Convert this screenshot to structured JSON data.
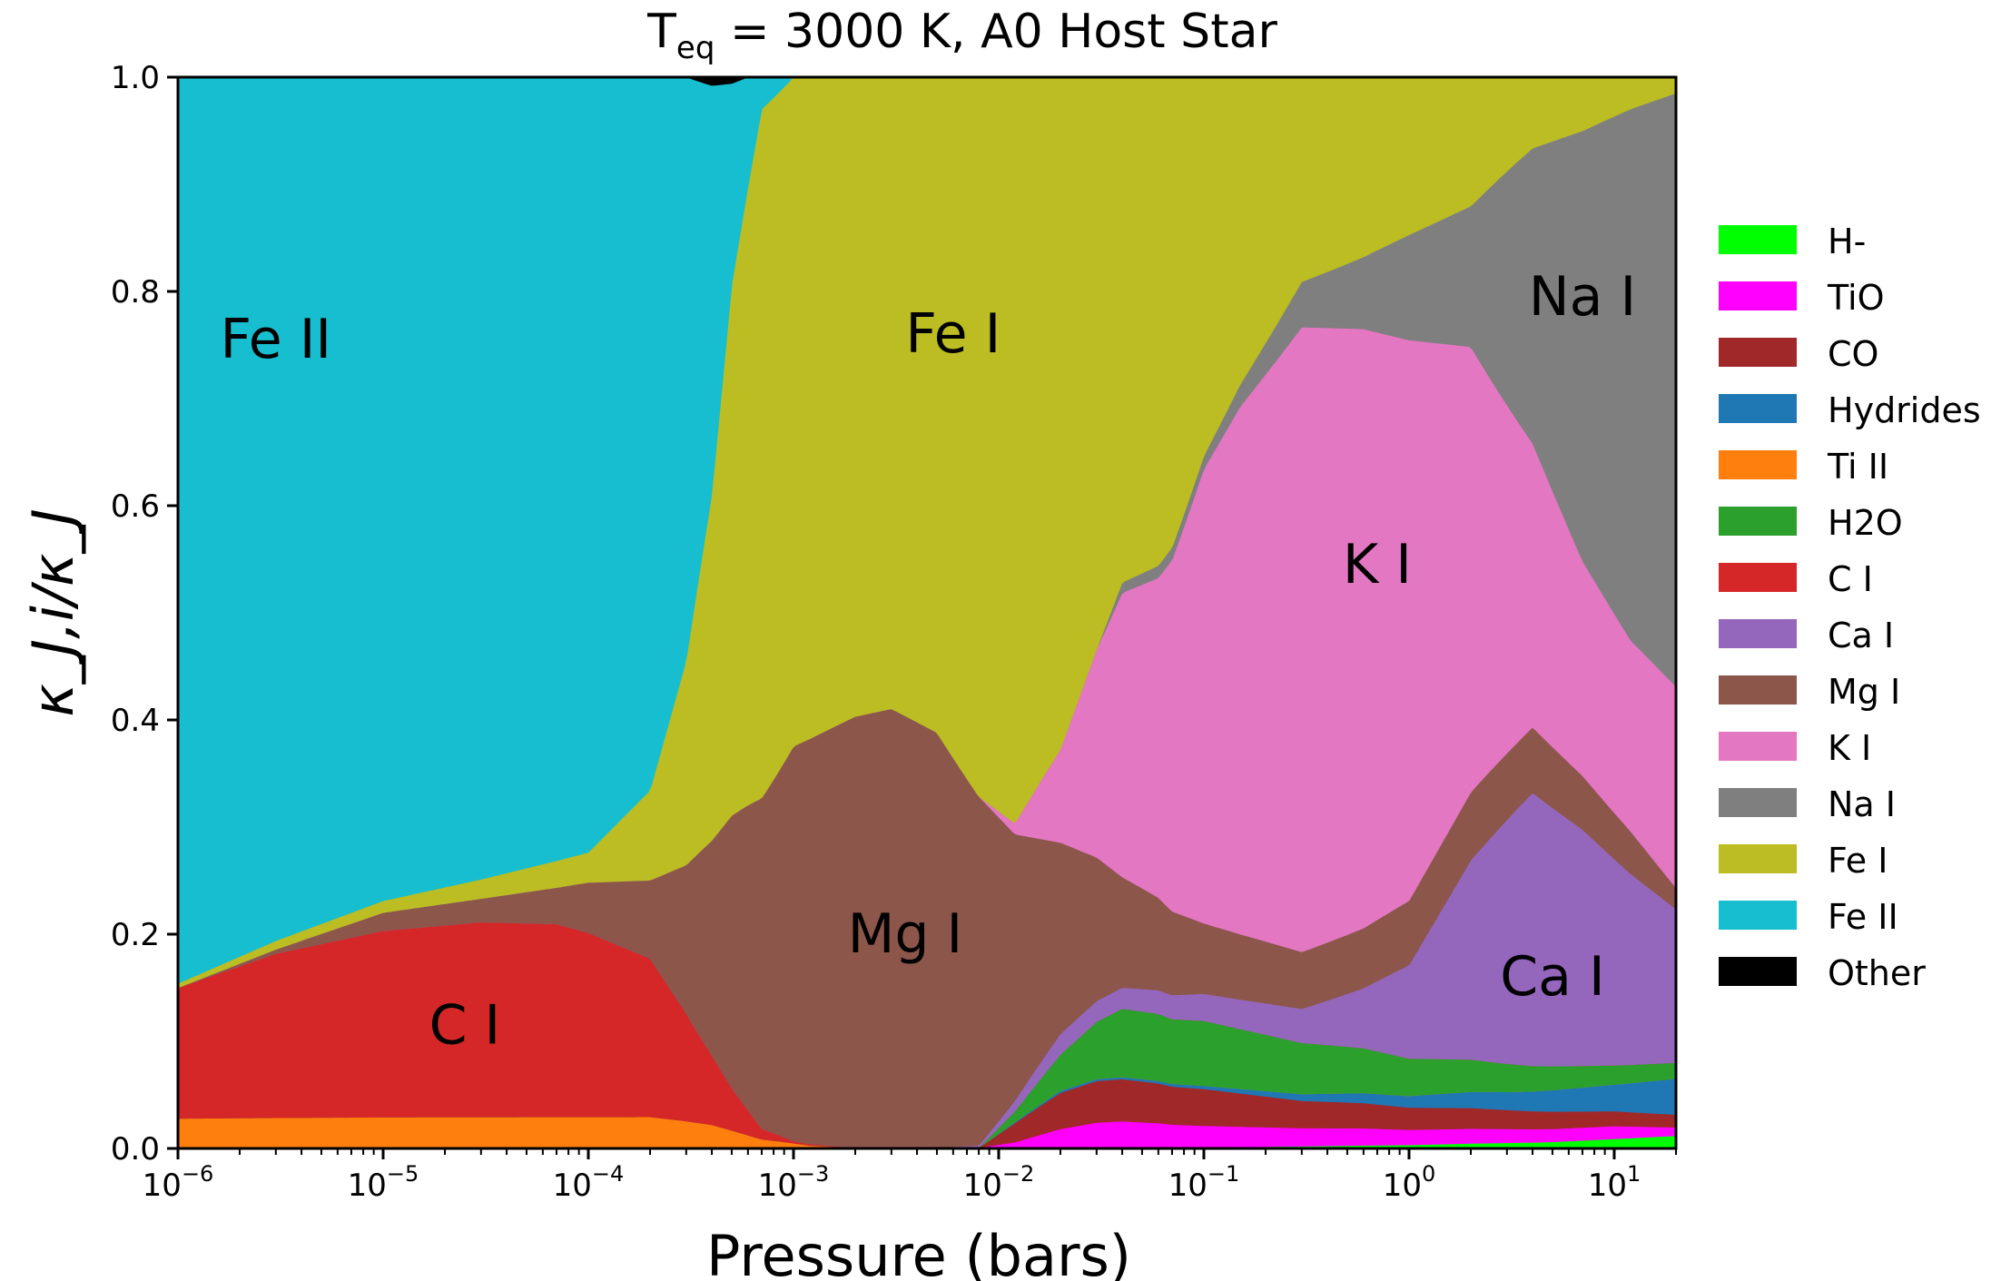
{
  "chart_data": {
    "type": "area",
    "stacked": true,
    "normalized": true,
    "title": "T_eq = 3000 K, A0 Host Star",
    "title_parts": {
      "main": "T",
      "sub": "eq",
      "rest": " = 3000 K, A0 Host Star"
    },
    "xlabel": "Pressure (bars)",
    "ylabel": "κ_J,i/κ_J",
    "x_scale": "log",
    "xlim": [
      1e-06,
      20
    ],
    "ylim": [
      0.0,
      1.0
    ],
    "y_ticks": [
      "0.0",
      "0.2",
      "0.4",
      "0.6",
      "0.8",
      "1.0"
    ],
    "x_ticks": [
      {
        "value": 1e-06,
        "base": "10",
        "exp": "−6"
      },
      {
        "value": 1e-05,
        "base": "10",
        "exp": "−5"
      },
      {
        "value": 0.0001,
        "base": "10",
        "exp": "−4"
      },
      {
        "value": 0.001,
        "base": "10",
        "exp": "−3"
      },
      {
        "value": 0.01,
        "base": "10",
        "exp": "−2"
      },
      {
        "value": 0.1,
        "base": "10",
        "exp": "−1"
      },
      {
        "value": 1,
        "base": "10",
        "exp": "0"
      },
      {
        "value": 10,
        "base": "10",
        "exp": "1"
      }
    ],
    "legend_position": "right",
    "series_order_bottom_to_top": [
      "H-",
      "TiO",
      "CO",
      "Hydrides",
      "Ti II",
      "H2O",
      "C I",
      "Ca I",
      "Mg I",
      "K I",
      "Na I",
      "Fe I",
      "Fe II",
      "Other"
    ],
    "series": [
      {
        "name": "H-",
        "color": "#00ff00",
        "points": [
          [
            1e-06,
            0
          ],
          [
            0.1,
            0.001
          ],
          [
            1,
            0.003
          ],
          [
            5,
            0.006
          ],
          [
            20,
            0.012
          ]
        ]
      },
      {
        "name": "TiO",
        "color": "#ff00ff",
        "points": [
          [
            1e-06,
            0
          ],
          [
            0.008,
            0
          ],
          [
            0.012,
            0.005
          ],
          [
            0.02,
            0.018
          ],
          [
            0.03,
            0.024
          ],
          [
            0.04,
            0.025
          ],
          [
            0.1,
            0.02
          ],
          [
            0.3,
            0.016
          ],
          [
            1,
            0.013
          ],
          [
            5,
            0.012
          ],
          [
            10,
            0.012
          ],
          [
            20,
            0.008
          ]
        ]
      },
      {
        "name": "CO",
        "color": "#a12828",
        "points": [
          [
            1e-06,
            0
          ],
          [
            0.008,
            0
          ],
          [
            0.012,
            0.018
          ],
          [
            0.02,
            0.035
          ],
          [
            0.03,
            0.04
          ],
          [
            0.04,
            0.04
          ],
          [
            0.1,
            0.034
          ],
          [
            0.3,
            0.024
          ],
          [
            1,
            0.019
          ],
          [
            5,
            0.016
          ],
          [
            10,
            0.014
          ],
          [
            20,
            0.012
          ]
        ]
      },
      {
        "name": "Hydrides",
        "color": "#1f77b4",
        "points": [
          [
            1e-06,
            0
          ],
          [
            0.008,
            0
          ],
          [
            0.012,
            0.001
          ],
          [
            0.02,
            0.002
          ],
          [
            0.04,
            0.002
          ],
          [
            0.1,
            0.003
          ],
          [
            0.3,
            0.006
          ],
          [
            1,
            0.01
          ],
          [
            3,
            0.016
          ],
          [
            10,
            0.025
          ],
          [
            20,
            0.034
          ]
        ]
      },
      {
        "name": "Ti II",
        "color": "#ff7f0e",
        "points": [
          [
            1e-06,
            0.028
          ],
          [
            1e-05,
            0.029
          ],
          [
            0.0001,
            0.029
          ],
          [
            0.0002,
            0.029
          ],
          [
            0.0004,
            0.022
          ],
          [
            0.0007,
            0.008
          ],
          [
            0.0012,
            0.002
          ],
          [
            0.002,
            0
          ],
          [
            20,
            0
          ]
        ]
      },
      {
        "name": "H2O",
        "color": "#2ca02c",
        "points": [
          [
            1e-06,
            0
          ],
          [
            0.008,
            0
          ],
          [
            0.012,
            0.01
          ],
          [
            0.02,
            0.035
          ],
          [
            0.03,
            0.055
          ],
          [
            0.04,
            0.065
          ],
          [
            0.1,
            0.06
          ],
          [
            0.3,
            0.045
          ],
          [
            1,
            0.032
          ],
          [
            3,
            0.025
          ],
          [
            10,
            0.018
          ],
          [
            20,
            0.015
          ]
        ]
      },
      {
        "name": "C I",
        "color": "#d62728",
        "points": [
          [
            1e-06,
            0.122
          ],
          [
            3e-06,
            0.153
          ],
          [
            1e-05,
            0.174
          ],
          [
            3e-05,
            0.182
          ],
          [
            7e-05,
            0.18
          ],
          [
            0.0001,
            0.172
          ],
          [
            0.0002,
            0.148
          ],
          [
            0.0003,
            0.1
          ],
          [
            0.0005,
            0.04
          ],
          [
            0.0007,
            0.01
          ],
          [
            0.001,
            0.002
          ],
          [
            0.002,
            0
          ],
          [
            20,
            0
          ]
        ]
      },
      {
        "name": "Ca I",
        "color": "#9467bd",
        "points": [
          [
            1e-06,
            0
          ],
          [
            0.005,
            0
          ],
          [
            0.008,
            0.002
          ],
          [
            0.012,
            0.01
          ],
          [
            0.02,
            0.02
          ],
          [
            0.03,
            0.02
          ],
          [
            0.04,
            0.02
          ],
          [
            0.07,
            0.023
          ],
          [
            0.1,
            0.025
          ],
          [
            0.3,
            0.03
          ],
          [
            0.6,
            0.05
          ],
          [
            1,
            0.08
          ],
          [
            2,
            0.17
          ],
          [
            4,
            0.25
          ],
          [
            7,
            0.22
          ],
          [
            12,
            0.18
          ],
          [
            20,
            0.145
          ]
        ]
      },
      {
        "name": "Mg I",
        "color": "#8c564b",
        "points": [
          [
            1e-06,
            0.0
          ],
          [
            3e-06,
            0.004
          ],
          [
            1e-05,
            0.017
          ],
          [
            3e-05,
            0.022
          ],
          [
            7e-05,
            0.034
          ],
          [
            0.0001,
            0.047
          ],
          [
            0.0002,
            0.073
          ],
          [
            0.0003,
            0.138
          ],
          [
            0.0005,
            0.257
          ],
          [
            0.0007,
            0.312
          ],
          [
            0.001,
            0.348
          ],
          [
            0.002,
            0.398
          ],
          [
            0.003,
            0.41
          ],
          [
            0.005,
            0.38
          ],
          [
            0.008,
            0.33
          ],
          [
            0.012,
            0.25
          ],
          [
            0.02,
            0.185
          ],
          [
            0.04,
            0.105
          ],
          [
            0.07,
            0.08
          ],
          [
            0.1,
            0.065
          ],
          [
            0.3,
            0.05
          ],
          [
            0.6,
            0.05
          ],
          [
            1,
            0.055
          ],
          [
            2,
            0.058
          ],
          [
            4,
            0.06
          ],
          [
            7,
            0.05
          ],
          [
            12,
            0.04
          ],
          [
            20,
            0.02
          ]
        ]
      },
      {
        "name": "K I",
        "color": "#e377c2",
        "points": [
          [
            1e-06,
            0
          ],
          [
            0.008,
            0
          ],
          [
            0.012,
            0.01
          ],
          [
            0.02,
            0.09
          ],
          [
            0.03,
            0.2
          ],
          [
            0.04,
            0.27
          ],
          [
            0.06,
            0.3
          ],
          [
            0.1,
            0.42
          ],
          [
            0.15,
            0.48
          ],
          [
            0.3,
            0.55
          ],
          [
            0.6,
            0.5
          ],
          [
            1,
            0.48
          ],
          [
            2,
            0.38
          ],
          [
            4,
            0.26
          ],
          [
            7,
            0.2
          ],
          [
            12,
            0.18
          ],
          [
            20,
            0.19
          ]
        ]
      },
      {
        "name": "Na I",
        "color": "#7f7f7f",
        "points": [
          [
            1e-06,
            0
          ],
          [
            0.03,
            0
          ],
          [
            0.04,
            0.01
          ],
          [
            0.07,
            0.012
          ],
          [
            0.1,
            0.012
          ],
          [
            0.15,
            0.02
          ],
          [
            0.3,
            0.04
          ],
          [
            0.6,
            0.06
          ],
          [
            1,
            0.09
          ],
          [
            2,
            0.12
          ],
          [
            4,
            0.27
          ],
          [
            7,
            0.4
          ],
          [
            12,
            0.5
          ],
          [
            20,
            0.56
          ]
        ]
      },
      {
        "name": "Fe I",
        "color": "#bcbd22",
        "points": [
          [
            1e-06,
            0.004
          ],
          [
            3e-06,
            0.008
          ],
          [
            1e-05,
            0.011
          ],
          [
            3e-05,
            0.018
          ],
          [
            7e-05,
            0.025
          ],
          [
            0.0001,
            0.028
          ],
          [
            0.0002,
            0.084
          ],
          [
            0.0003,
            0.19
          ],
          [
            0.0004,
            0.33
          ],
          [
            0.0005,
            0.5
          ],
          [
            0.0007,
            0.65
          ],
          [
            0.001,
            0.59
          ],
          [
            0.002,
            0.59
          ],
          [
            0.003,
            0.59
          ],
          [
            0.005,
            0.6
          ],
          [
            0.008,
            0.68
          ],
          [
            0.012,
            0.7
          ],
          [
            0.02,
            0.65
          ],
          [
            0.04,
            0.48
          ],
          [
            0.07,
            0.45
          ],
          [
            0.1,
            0.35
          ],
          [
            0.15,
            0.28
          ],
          [
            0.3,
            0.18
          ],
          [
            0.6,
            0.15
          ],
          [
            1,
            0.135
          ],
          [
            2,
            0.11
          ],
          [
            4,
            0.065
          ],
          [
            7,
            0.05
          ],
          [
            12,
            0.03
          ],
          [
            20,
            0.015
          ]
        ]
      },
      {
        "name": "Fe II",
        "color": "#17becf",
        "points": [
          [
            1e-06,
            0.846
          ],
          [
            3e-06,
            0.805
          ],
          [
            1e-05,
            0.769
          ],
          [
            3e-05,
            0.749
          ],
          [
            7e-05,
            0.731
          ],
          [
            0.0001,
            0.724
          ],
          [
            0.0002,
            0.666
          ],
          [
            0.0003,
            0.542
          ],
          [
            0.0004,
            0.39
          ],
          [
            0.0005,
            0.19
          ],
          [
            0.0007,
            0.03
          ],
          [
            0.001,
            0
          ],
          [
            20,
            0
          ]
        ]
      },
      {
        "name": "Other",
        "color": "#000000",
        "points": [
          [
            1e-06,
            0
          ],
          [
            0.0003,
            0
          ],
          [
            0.0004,
            0.008
          ],
          [
            0.0005,
            0.006
          ],
          [
            0.0006,
            0
          ],
          [
            20,
            0
          ]
        ]
      }
    ],
    "region_labels": [
      {
        "text": "Fe II",
        "x": 3e-06,
        "y": 0.755
      },
      {
        "text": "Fe I",
        "x": 0.006,
        "y": 0.76
      },
      {
        "text": "Na I",
        "x": 7,
        "y": 0.795
      },
      {
        "text": "K I",
        "x": 0.7,
        "y": 0.545
      },
      {
        "text": "Mg I",
        "x": 0.0035,
        "y": 0.2
      },
      {
        "text": "C I",
        "x": 2.5e-05,
        "y": 0.115
      },
      {
        "text": "Ca I",
        "x": 5,
        "y": 0.16
      }
    ],
    "legend": [
      "H-",
      "TiO",
      "CO",
      "Hydrides",
      "Ti II",
      "H2O",
      "C I",
      "Ca I",
      "Mg I",
      "K I",
      "Na I",
      "Fe I",
      "Fe II",
      "Other"
    ]
  }
}
